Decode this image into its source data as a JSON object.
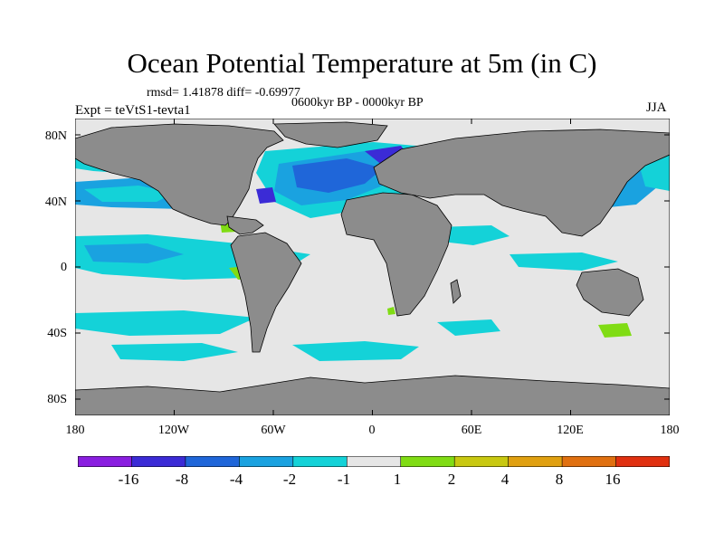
{
  "figure": {
    "title": "Ocean Potential Temperature at 5m (in C)",
    "stats": "rmsd= 1.41878 diff= -0.69977",
    "period": "0600kyr BP - 0000kyr BP",
    "experiment": "Expt = teVtS1-tevta1",
    "season": "JJA"
  },
  "map": {
    "lat_labels": [
      "80N",
      "40N",
      "0",
      "40S",
      "80S"
    ],
    "lon_labels": [
      "180",
      "120W",
      "60W",
      "0",
      "60E",
      "120E",
      "180"
    ],
    "colors": {
      "land": "#8c8c8c",
      "neutral": "#e6e6e6",
      "coast": "#000000"
    }
  },
  "colorbar": {
    "labels": [
      "-16",
      "-8",
      "-4",
      "-2",
      "-1",
      "1",
      "2",
      "4",
      "8",
      "16"
    ],
    "colors": [
      "#8a1ee0",
      "#3b2bd6",
      "#1f66d9",
      "#1aa2e0",
      "#14d2d8",
      "#e6e6e6",
      "#80dc14",
      "#c8c810",
      "#e0a010",
      "#e07010",
      "#e03010"
    ]
  }
}
